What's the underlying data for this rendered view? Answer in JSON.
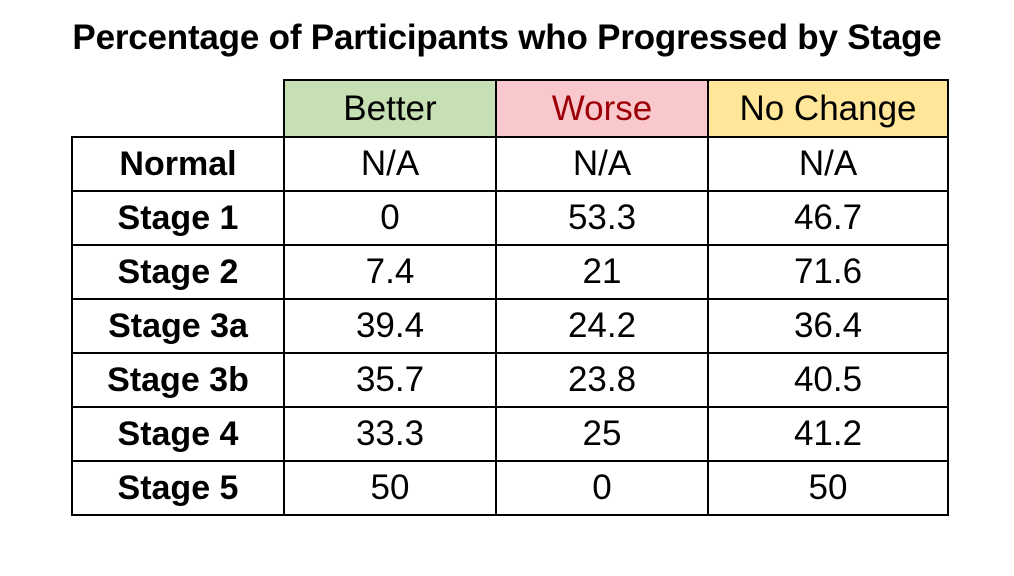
{
  "title": "Percentage of Participants who Progressed by Stage",
  "columns": [
    {
      "label": "Better",
      "bg": "#c6e0b4",
      "color": "#000000"
    },
    {
      "label": "Worse",
      "bg": "#f8c8cd",
      "color": "#9c0006"
    },
    {
      "label": "No Change",
      "bg": "#ffe699",
      "color": "#000000"
    }
  ],
  "rows": [
    {
      "label": "Normal",
      "values": [
        "N/A",
        "N/A",
        "N/A"
      ]
    },
    {
      "label": "Stage 1",
      "values": [
        "0",
        "53.3",
        "46.7"
      ]
    },
    {
      "label": "Stage 2",
      "values": [
        "7.4",
        "21",
        "71.6"
      ]
    },
    {
      "label": "Stage 3a",
      "values": [
        "39.4",
        "24.2",
        "36.4"
      ]
    },
    {
      "label": "Stage 3b",
      "values": [
        "35.7",
        "23.8",
        "40.5"
      ]
    },
    {
      "label": "Stage 4",
      "values": [
        "33.3",
        "25",
        "41.2"
      ]
    },
    {
      "label": "Stage 5",
      "values": [
        "50",
        "0",
        "50"
      ]
    }
  ],
  "chart_data": {
    "type": "table",
    "title": "Percentage of Participants who Progressed by Stage",
    "columns": [
      "Better",
      "Worse",
      "No Change"
    ],
    "row_labels": [
      "Normal",
      "Stage 1",
      "Stage 2",
      "Stage 3a",
      "Stage 3b",
      "Stage 4",
      "Stage 5"
    ],
    "values": [
      [
        "N/A",
        "N/A",
        "N/A"
      ],
      [
        0,
        53.3,
        46.7
      ],
      [
        7.4,
        21,
        71.6
      ],
      [
        39.4,
        24.2,
        36.4
      ],
      [
        35.7,
        23.8,
        40.5
      ],
      [
        33.3,
        25,
        41.2
      ],
      [
        50,
        0,
        50
      ]
    ]
  }
}
